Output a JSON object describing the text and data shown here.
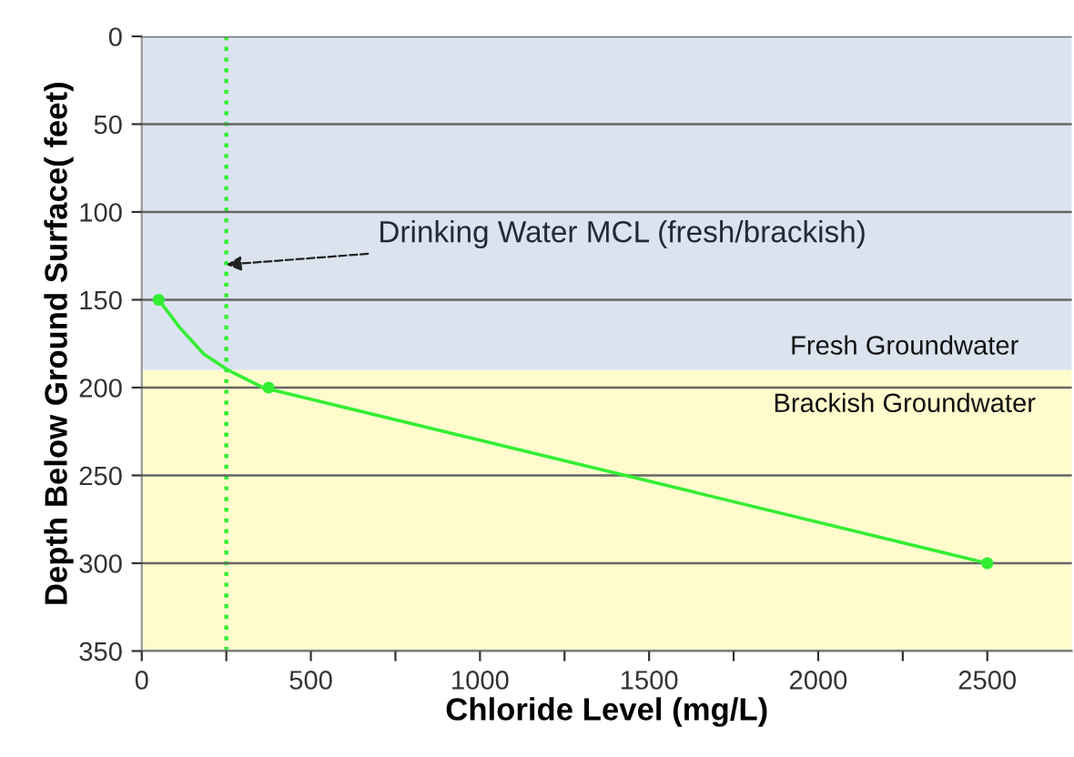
{
  "chart_data": {
    "type": "line",
    "xlabel": "Chloride Level (mg/L)",
    "ylabel": "Depth Below Ground Surface( feet)",
    "xlim": [
      0,
      2750
    ],
    "xticks": [
      0,
      {
        "value": 250,
        "label": null
      },
      500,
      {
        "value": 750,
        "label": null
      },
      1000,
      {
        "value": 1250,
        "label": null
      },
      1500,
      {
        "value": 1750,
        "label": null
      },
      2000,
      {
        "value": 2250,
        "label": null
      },
      2500
    ],
    "ylim": [
      350,
      0
    ],
    "yticks": [
      0,
      50,
      100,
      150,
      200,
      250,
      300,
      350
    ],
    "grid": "y",
    "series": [
      {
        "color": "#33ee33",
        "x": [
          50,
          113,
          184,
          255,
          358,
          2500
        ],
        "values": [
          150,
          166,
          181,
          190,
          200,
          300
        ],
        "marker": "none",
        "line_style": "solid"
      },
      {
        "type": "scatter",
        "color": "#33ee33",
        "x": [
          50,
          375,
          2500
        ],
        "values": [
          150,
          200,
          300
        ],
        "marker": "circle"
      }
    ],
    "bands": [
      {
        "axis": "y",
        "from": 0,
        "to": 190,
        "label": "Fresh Groundwater",
        "color": "#dbe3ef"
      },
      {
        "axis": "y",
        "from": 190,
        "to": 350,
        "label": "Brackish Groundwater",
        "color": "#fffbcc"
      }
    ],
    "ref_lines": [
      {
        "axis": "x",
        "value": 250,
        "color": "#33ee33",
        "line_style": "dotted"
      }
    ],
    "annotations": [
      {
        "text": "Drinking Water MCL (fresh/brackish)",
        "x": 250,
        "y": 130
      }
    ]
  }
}
